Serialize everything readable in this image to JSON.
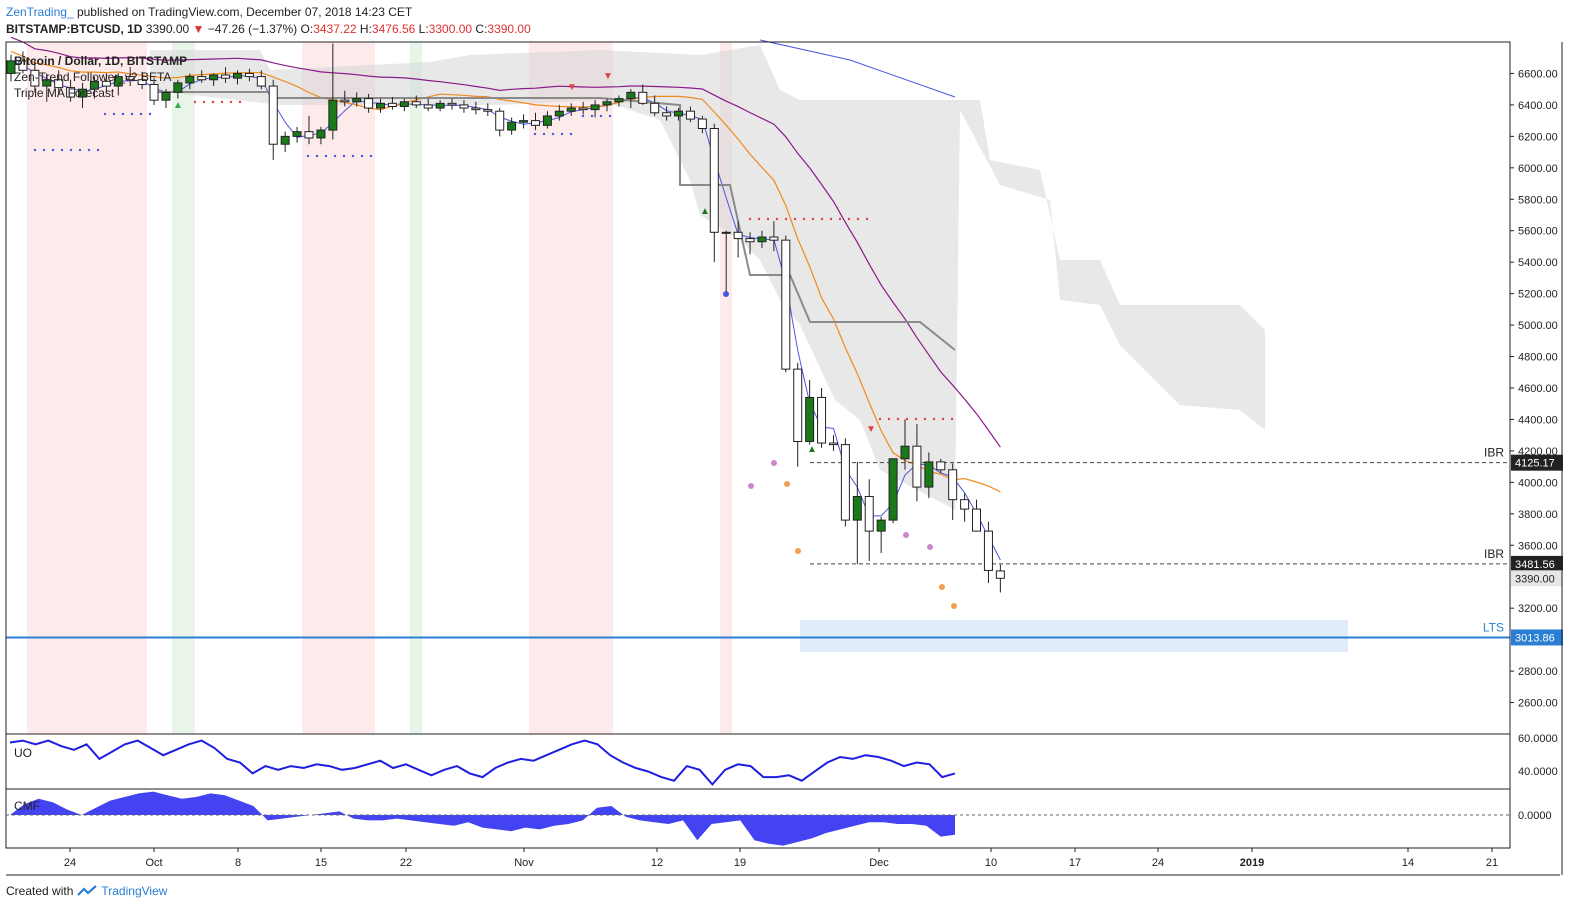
{
  "header": {
    "author": "ZenTrading_",
    "published": "published on TradingView.com, December 07, 2018 14:23 CET",
    "symbol": "BITSTAMP:BTCUSD, 1D",
    "last": "3390.00",
    "change": "−47.26 (−1.37%)",
    "o_label": "O:",
    "o": "3437.22",
    "h_label": "H:",
    "h": "3476.56",
    "l_label": "L:",
    "l": "3300.00",
    "c_label": "C:",
    "c": "3390.00"
  },
  "indicators": {
    "title": "Bitcoin / Dollar, 1D, BITSTAMP",
    "zen": "Zen-Trend Follower_v2 BETA",
    "triple": "Triple MA Forecast"
  },
  "oscillators": {
    "uo": "UO",
    "cmf": "CMF"
  },
  "footer": {
    "created": "Created with",
    "brand": "TradingView"
  },
  "colors": {
    "up_candle": "#1a7a1a",
    "down_candle": "#ffffff",
    "accent": "#2a7fd4",
    "ma_fast": "#4b56e0",
    "ma_mid": "#f08a1e",
    "ma_slow": "#8a1a8a",
    "cloud": "#d6d6d6",
    "red_band": "#fde6e6",
    "green_band": "#e4f3e4"
  },
  "chart_data": {
    "type": "candlestick",
    "symbol": "BITSTAMP:BTCUSD",
    "timeframe": "1D",
    "ylim": [
      2400,
      6800
    ],
    "price_ticks": [
      "6600.00",
      "6400.00",
      "6200.00",
      "6000.00",
      "5800.00",
      "5600.00",
      "5400.00",
      "5200.00",
      "5000.00",
      "4800.00",
      "4600.00",
      "4400.00",
      "4200.00",
      "4000.00",
      "3800.00",
      "3600.00",
      "3200.00",
      "2800.00",
      "2600.00"
    ],
    "x_ticks": [
      "24",
      "Oct",
      "8",
      "15",
      "22",
      "Nov",
      "12",
      "19",
      "Dec",
      "10",
      "17",
      "24",
      "2019",
      "14",
      "21"
    ],
    "levels": [
      {
        "label": "IBR",
        "value": "4125.17"
      },
      {
        "label": "IBR",
        "value": "3481.56"
      },
      {
        "label": "LTS",
        "value": "3013.86"
      }
    ],
    "last_price_tag": "3390.00",
    "uo_ticks": [
      "60.0000",
      "40.0000"
    ],
    "cmf_ticks": [
      "0.0000"
    ],
    "candles": [
      {
        "o": 6600,
        "h": 6720,
        "l": 6550,
        "c": 6680
      },
      {
        "o": 6680,
        "h": 6740,
        "l": 6600,
        "c": 6620
      },
      {
        "o": 6620,
        "h": 6690,
        "l": 6480,
        "c": 6520
      },
      {
        "o": 6520,
        "h": 6600,
        "l": 6420,
        "c": 6560
      },
      {
        "o": 6560,
        "h": 6620,
        "l": 6470,
        "c": 6510
      },
      {
        "o": 6510,
        "h": 6560,
        "l": 6420,
        "c": 6450
      },
      {
        "o": 6450,
        "h": 6540,
        "l": 6380,
        "c": 6500
      },
      {
        "o": 6500,
        "h": 6580,
        "l": 6440,
        "c": 6550
      },
      {
        "o": 6550,
        "h": 6600,
        "l": 6480,
        "c": 6520
      },
      {
        "o": 6520,
        "h": 6600,
        "l": 6460,
        "c": 6580
      },
      {
        "o": 6580,
        "h": 6640,
        "l": 6520,
        "c": 6560
      },
      {
        "o": 6560,
        "h": 6610,
        "l": 6500,
        "c": 6530
      },
      {
        "o": 6530,
        "h": 6570,
        "l": 6400,
        "c": 6430
      },
      {
        "o": 6430,
        "h": 6500,
        "l": 6380,
        "c": 6480
      },
      {
        "o": 6480,
        "h": 6560,
        "l": 6440,
        "c": 6540
      },
      {
        "o": 6540,
        "h": 6600,
        "l": 6500,
        "c": 6580
      },
      {
        "o": 6580,
        "h": 6620,
        "l": 6540,
        "c": 6560
      },
      {
        "o": 6560,
        "h": 6600,
        "l": 6520,
        "c": 6590
      },
      {
        "o": 6590,
        "h": 6640,
        "l": 6540,
        "c": 6570
      },
      {
        "o": 6570,
        "h": 6620,
        "l": 6530,
        "c": 6600
      },
      {
        "o": 6600,
        "h": 6630,
        "l": 6550,
        "c": 6580
      },
      {
        "o": 6580,
        "h": 6620,
        "l": 6500,
        "c": 6520
      },
      {
        "o": 6520,
        "h": 6560,
        "l": 6050,
        "c": 6150
      },
      {
        "o": 6150,
        "h": 6230,
        "l": 6100,
        "c": 6200
      },
      {
        "o": 6200,
        "h": 6260,
        "l": 6160,
        "c": 6230
      },
      {
        "o": 6230,
        "h": 6330,
        "l": 6150,
        "c": 6190
      },
      {
        "o": 6190,
        "h": 6260,
        "l": 6150,
        "c": 6240
      },
      {
        "o": 6240,
        "h": 6790,
        "l": 6180,
        "c": 6430
      },
      {
        "o": 6430,
        "h": 6490,
        "l": 6390,
        "c": 6420
      },
      {
        "o": 6420,
        "h": 6480,
        "l": 6390,
        "c": 6440
      },
      {
        "o": 6440,
        "h": 6470,
        "l": 6350,
        "c": 6380
      },
      {
        "o": 6380,
        "h": 6440,
        "l": 6350,
        "c": 6410
      },
      {
        "o": 6410,
        "h": 6450,
        "l": 6370,
        "c": 6390
      },
      {
        "o": 6390,
        "h": 6440,
        "l": 6360,
        "c": 6420
      },
      {
        "o": 6420,
        "h": 6460,
        "l": 6380,
        "c": 6400
      },
      {
        "o": 6400,
        "h": 6440,
        "l": 6360,
        "c": 6380
      },
      {
        "o": 6380,
        "h": 6430,
        "l": 6360,
        "c": 6410
      },
      {
        "o": 6410,
        "h": 6440,
        "l": 6370,
        "c": 6400
      },
      {
        "o": 6400,
        "h": 6430,
        "l": 6350,
        "c": 6380
      },
      {
        "o": 6380,
        "h": 6420,
        "l": 6340,
        "c": 6370
      },
      {
        "o": 6370,
        "h": 6410,
        "l": 6330,
        "c": 6360
      },
      {
        "o": 6360,
        "h": 6380,
        "l": 6200,
        "c": 6240
      },
      {
        "o": 6240,
        "h": 6320,
        "l": 6210,
        "c": 6290
      },
      {
        "o": 6290,
        "h": 6340,
        "l": 6250,
        "c": 6300
      },
      {
        "o": 6300,
        "h": 6350,
        "l": 6240,
        "c": 6270
      },
      {
        "o": 6270,
        "h": 6360,
        "l": 6250,
        "c": 6330
      },
      {
        "o": 6330,
        "h": 6400,
        "l": 6300,
        "c": 6360
      },
      {
        "o": 6360,
        "h": 6410,
        "l": 6330,
        "c": 6380
      },
      {
        "o": 6380,
        "h": 6420,
        "l": 6340,
        "c": 6370
      },
      {
        "o": 6370,
        "h": 6430,
        "l": 6320,
        "c": 6400
      },
      {
        "o": 6400,
        "h": 6440,
        "l": 6360,
        "c": 6420
      },
      {
        "o": 6420,
        "h": 6460,
        "l": 6390,
        "c": 6440
      },
      {
        "o": 6440,
        "h": 6500,
        "l": 6380,
        "c": 6480
      },
      {
        "o": 6480,
        "h": 6530,
        "l": 6400,
        "c": 6410
      },
      {
        "o": 6410,
        "h": 6460,
        "l": 6330,
        "c": 6350
      },
      {
        "o": 6350,
        "h": 6390,
        "l": 6300,
        "c": 6330
      },
      {
        "o": 6330,
        "h": 6380,
        "l": 6300,
        "c": 6360
      },
      {
        "o": 6360,
        "h": 6390,
        "l": 6290,
        "c": 6310
      },
      {
        "o": 6310,
        "h": 6330,
        "l": 6220,
        "c": 6250
      },
      {
        "o": 6250,
        "h": 6280,
        "l": 5400,
        "c": 5590
      },
      {
        "o": 5590,
        "h": 5600,
        "l": 5200,
        "c": 5590
      },
      {
        "o": 5590,
        "h": 5660,
        "l": 5430,
        "c": 5550
      },
      {
        "o": 5550,
        "h": 5590,
        "l": 5450,
        "c": 5530
      },
      {
        "o": 5530,
        "h": 5600,
        "l": 5490,
        "c": 5560
      },
      {
        "o": 5560,
        "h": 5660,
        "l": 5470,
        "c": 5540
      },
      {
        "o": 5540,
        "h": 5570,
        "l": 4700,
        "c": 4720
      },
      {
        "o": 4720,
        "h": 4760,
        "l": 4100,
        "c": 4260
      },
      {
        "o": 4260,
        "h": 4650,
        "l": 4240,
        "c": 4540
      },
      {
        "o": 4540,
        "h": 4600,
        "l": 4220,
        "c": 4250
      },
      {
        "o": 4250,
        "h": 4300,
        "l": 4200,
        "c": 4240
      },
      {
        "o": 4240,
        "h": 4280,
        "l": 3720,
        "c": 3760
      },
      {
        "o": 3760,
        "h": 4130,
        "l": 3480,
        "c": 3910
      },
      {
        "o": 3910,
        "h": 4020,
        "l": 3500,
        "c": 3690
      },
      {
        "o": 3690,
        "h": 3780,
        "l": 3550,
        "c": 3760
      },
      {
        "o": 3760,
        "h": 4150,
        "l": 3740,
        "c": 4150
      },
      {
        "o": 4150,
        "h": 4400,
        "l": 4080,
        "c": 4230
      },
      {
        "o": 4230,
        "h": 4370,
        "l": 3880,
        "c": 3970
      },
      {
        "o": 3970,
        "h": 4190,
        "l": 3900,
        "c": 4130
      },
      {
        "o": 4130,
        "h": 4150,
        "l": 4060,
        "c": 4080
      },
      {
        "o": 4080,
        "h": 4120,
        "l": 3760,
        "c": 3890
      },
      {
        "o": 3890,
        "h": 3930,
        "l": 3750,
        "c": 3830
      },
      {
        "o": 3830,
        "h": 3890,
        "l": 3690,
        "c": 3690
      },
      {
        "o": 3690,
        "h": 3750,
        "l": 3360,
        "c": 3440
      },
      {
        "o": 3437,
        "h": 3477,
        "l": 3300,
        "c": 3390
      }
    ]
  }
}
